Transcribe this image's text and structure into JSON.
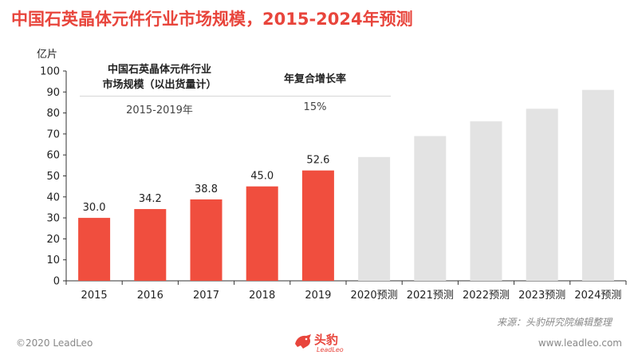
{
  "header": {
    "title": "中国石英晶体元件行业市场规模，2015-2024年预测",
    "unit_label": "亿片"
  },
  "cagr_box": {
    "header_left_line1": "中国石英晶体元件行业",
    "header_left_line2": "市场规模（以出货量计）",
    "header_right": "年复合增长率",
    "period": "2015-2019年",
    "rate": "15%"
  },
  "colors": {
    "title": "#e8453c",
    "actual_bar": "#f04e3e",
    "forecast_bar": "#e3e3e3",
    "axis": "#333333"
  },
  "chart_data": {
    "type": "bar",
    "title": "中国石英晶体元件行业市场规模，2015-2024年预测",
    "ylabel": "亿片",
    "xlabel": "",
    "ylim": [
      0,
      100
    ],
    "yticks": [
      0,
      10,
      20,
      30,
      40,
      50,
      60,
      70,
      80,
      90,
      100
    ],
    "categories": [
      "2015",
      "2016",
      "2017",
      "2018",
      "2019",
      "2020预测",
      "2021预测",
      "2022预测",
      "2023预测",
      "2024预测"
    ],
    "values": [
      30.0,
      34.2,
      38.8,
      45.0,
      52.6,
      59.0,
      69.0,
      76.0,
      82.0,
      91.0
    ],
    "data_labels": [
      "30.0",
      "34.2",
      "38.8",
      "45.0",
      "52.6",
      "",
      "",
      "",
      "",
      ""
    ],
    "forecast_flags": [
      false,
      false,
      false,
      false,
      false,
      true,
      true,
      true,
      true,
      true
    ],
    "grid": false,
    "legend": "none"
  },
  "footer": {
    "source": "来源：头豹研究院编辑整理",
    "copyright": "©2020 LeadLeo",
    "website": "www.leadleo.com",
    "logo_cn": "头豹",
    "logo_en": "LeadLeo"
  }
}
